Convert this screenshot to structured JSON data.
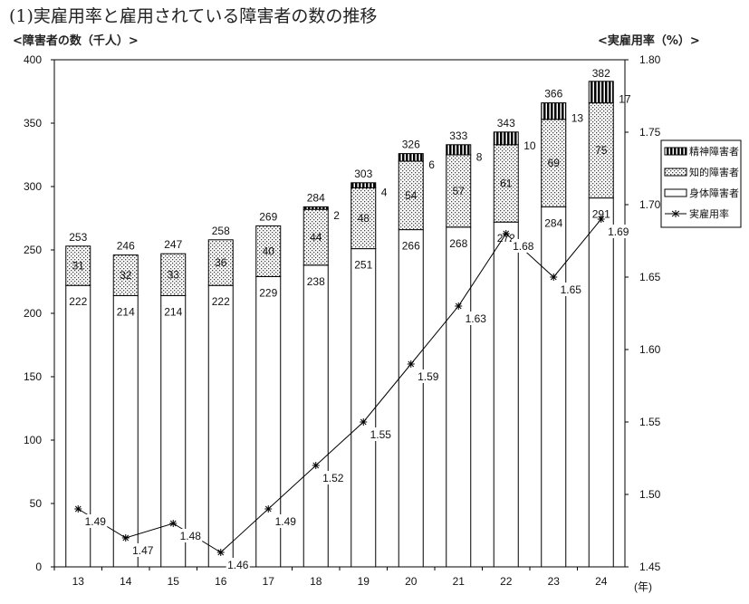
{
  "chart_data": {
    "type": "bar",
    "title": "(1)実雇用率と雇用されている障害者の数の推移",
    "ylabel": "<障害者の数（千人）>",
    "y2label": "<実雇用率（%）>",
    "xlabel": "(年)",
    "ylim": [
      0,
      400
    ],
    "yticks": [
      0,
      50,
      100,
      150,
      200,
      250,
      300,
      350,
      400
    ],
    "y2lim": [
      1.45,
      1.8
    ],
    "y2ticks": [
      "1.45",
      "1.50",
      "1.55",
      "1.60",
      "1.65",
      "1.70",
      "1.75",
      "1.80"
    ],
    "categories": [
      "13",
      "14",
      "15",
      "16",
      "17",
      "18",
      "19",
      "20",
      "21",
      "22",
      "23",
      "24"
    ],
    "totals": [
      253,
      246,
      247,
      258,
      269,
      284,
      303,
      326,
      333,
      343,
      366,
      382
    ],
    "series": [
      {
        "name": "身体障害者",
        "values": [
          222,
          214,
          214,
          222,
          229,
          238,
          251,
          266,
          268,
          272,
          284,
          291
        ],
        "pattern": "white"
      },
      {
        "name": "知的障害者",
        "values": [
          31,
          32,
          33,
          36,
          40,
          44,
          48,
          54,
          57,
          61,
          69,
          75
        ],
        "pattern": "dots"
      },
      {
        "name": "精神障害者",
        "values": [
          null,
          null,
          null,
          null,
          null,
          2,
          4,
          6,
          8,
          10,
          13,
          17
        ],
        "pattern": "stripes"
      },
      {
        "name": "実雇用率",
        "type": "line",
        "axis": "right",
        "values": [
          1.49,
          1.47,
          1.48,
          1.46,
          1.49,
          1.52,
          1.55,
          1.59,
          1.63,
          1.68,
          1.65,
          1.69
        ]
      }
    ],
    "legend": "right",
    "grid": false
  }
}
